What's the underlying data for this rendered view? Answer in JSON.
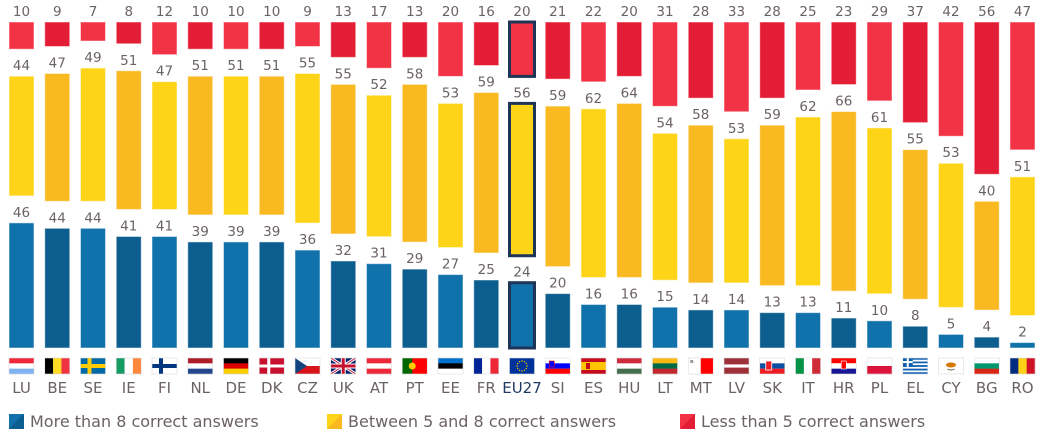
{
  "chart_data": {
    "type": "bar",
    "stacked": true,
    "orientation": "vertical",
    "title": "",
    "xlabel": "",
    "ylabel": "",
    "ylim": [
      0,
      100
    ],
    "grid": false,
    "legend_position": "bottom",
    "highlight_category": "EU27",
    "categories": [
      "LU",
      "BE",
      "SE",
      "IE",
      "FI",
      "NL",
      "DE",
      "DK",
      "CZ",
      "UK",
      "AT",
      "PT",
      "EE",
      "FR",
      "EU27",
      "SI",
      "ES",
      "HU",
      "LT",
      "MT",
      "LV",
      "SK",
      "IT",
      "HR",
      "PL",
      "EL",
      "CY",
      "BG",
      "RO"
    ],
    "series": [
      {
        "name": "More than 8 correct answers",
        "color": "#1172ab",
        "alt_color": "#0b5e8e",
        "values": [
          46,
          44,
          44,
          41,
          41,
          39,
          39,
          39,
          36,
          32,
          31,
          29,
          27,
          25,
          24,
          20,
          16,
          16,
          15,
          14,
          14,
          13,
          13,
          11,
          10,
          8,
          5,
          4,
          2
        ]
      },
      {
        "name": "Between 5 and 8 correct answers",
        "color": "#fdd417",
        "alt_color": "#f9b921",
        "values": [
          44,
          47,
          49,
          51,
          47,
          51,
          51,
          51,
          55,
          55,
          52,
          58,
          53,
          59,
          56,
          59,
          62,
          64,
          54,
          58,
          53,
          59,
          62,
          66,
          61,
          55,
          53,
          40,
          51
        ]
      },
      {
        "name": "Less than 5 correct answers",
        "color": "#f23345",
        "alt_color": "#e31d35",
        "values": [
          10,
          9,
          7,
          8,
          12,
          10,
          10,
          10,
          9,
          13,
          17,
          13,
          20,
          16,
          20,
          21,
          22,
          20,
          31,
          28,
          33,
          28,
          25,
          23,
          29,
          37,
          42,
          56,
          47
        ]
      }
    ]
  },
  "flags": {
    "LU": [
      [
        "#ed2939",
        "#ffffff",
        "#7fb2f0"
      ],
      "h"
    ],
    "BE": [
      [
        "#000000",
        "#fdda24",
        "#ef3340"
      ],
      "v"
    ],
    "SE": "se",
    "IE": [
      [
        "#169b62",
        "#ffffff",
        "#ff883e"
      ],
      "v"
    ],
    "FI": "fi",
    "NL": [
      [
        "#ae1c28",
        "#ffffff",
        "#21468b"
      ],
      "h"
    ],
    "DE": [
      [
        "#000000",
        "#dd0000",
        "#ffce00"
      ],
      "h"
    ],
    "DK": "dk",
    "CZ": "cz",
    "UK": "uk",
    "AT": [
      [
        "#ed2939",
        "#ffffff",
        "#ed2939"
      ],
      "h"
    ],
    "PT": "pt",
    "EE": [
      [
        "#0072ce",
        "#000000",
        "#ffffff"
      ],
      "h"
    ],
    "FR": [
      [
        "#002395",
        "#ffffff",
        "#ed2939"
      ],
      "v"
    ],
    "EU27": "eu",
    "SI": "si",
    "ES": [
      [
        "#c60b1e",
        "#ffc400",
        "#ffc400",
        "#c60b1e"
      ],
      "es"
    ],
    "HU": [
      [
        "#cd2a3e",
        "#ffffff",
        "#436f4d"
      ],
      "h"
    ],
    "LT": [
      [
        "#fdb913",
        "#006a44",
        "#c1272d"
      ],
      "h"
    ],
    "MT": "mt",
    "LV": [
      [
        "#9e3039",
        "#ffffff",
        "#9e3039"
      ],
      "lv"
    ],
    "SK": "sk",
    "IT": [
      [
        "#009246",
        "#ffffff",
        "#ce2b37"
      ],
      "v"
    ],
    "HR": "hr",
    "PL": [
      [
        "#ffffff",
        "#dc143c"
      ],
      "h"
    ],
    "EL": "el",
    "CY": "cy",
    "BG": [
      [
        "#ffffff",
        "#00966e",
        "#d62612"
      ],
      "h"
    ],
    "RO": [
      [
        "#002b7f",
        "#fcd116",
        "#ce1126"
      ],
      "v"
    ]
  }
}
